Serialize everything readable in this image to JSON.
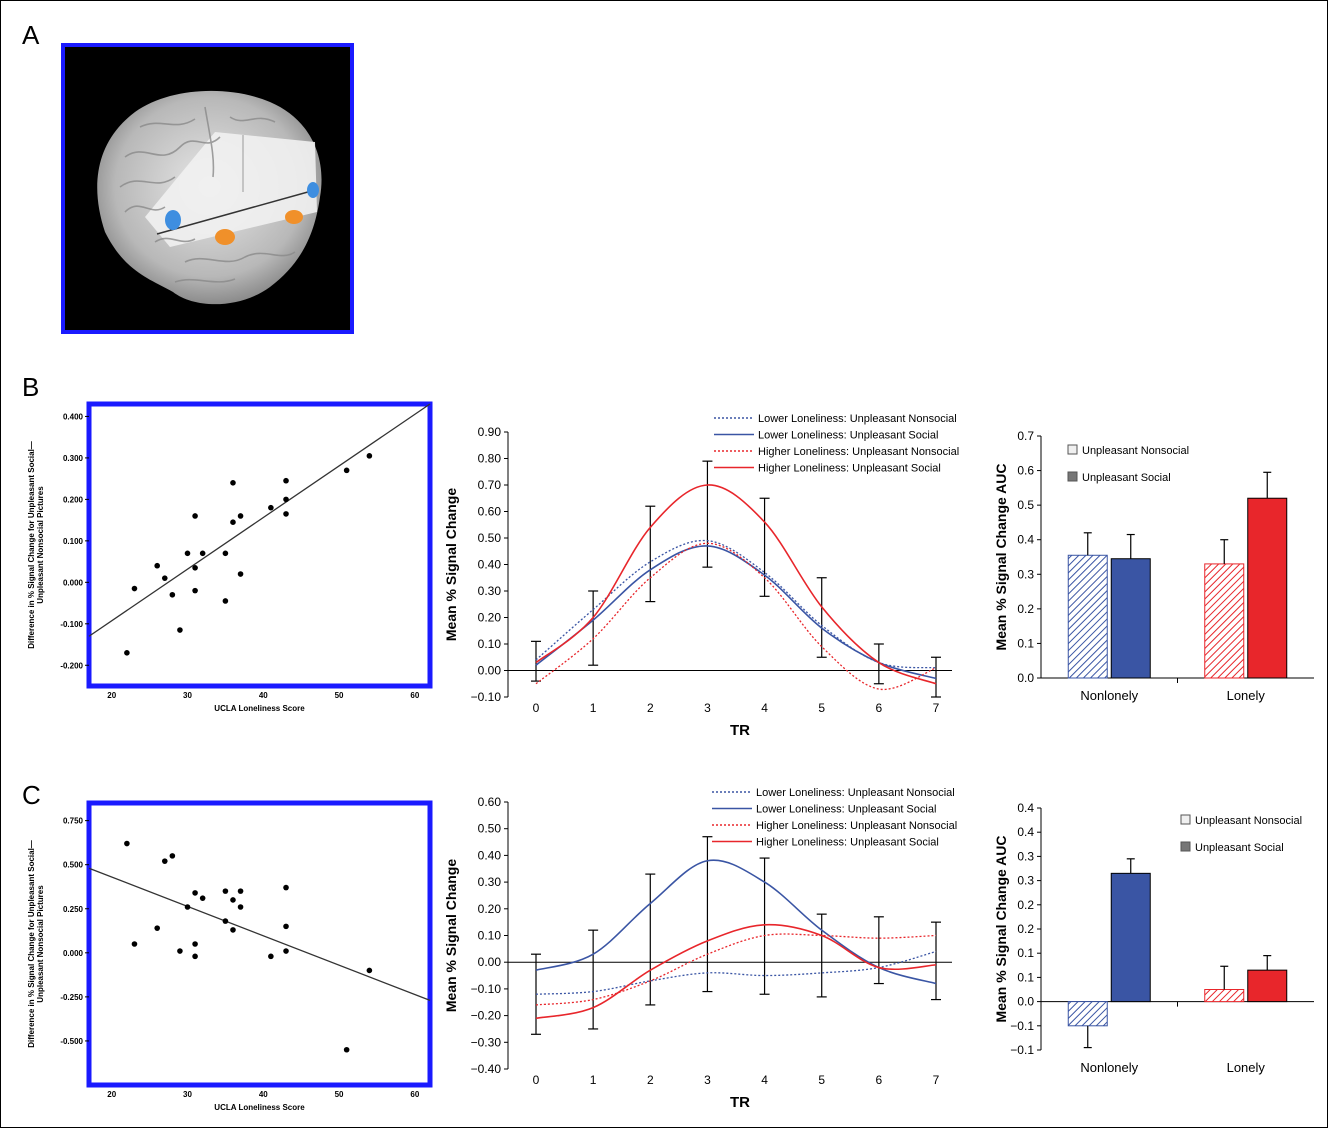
{
  "panels": {
    "a": "A",
    "b": "B",
    "c": "C"
  },
  "colors": {
    "blue_box": "#1a1aff",
    "series_blue": "#3a55a4",
    "series_red": "#e8262b"
  },
  "chart_data": [
    {
      "id": "B-scatter",
      "type": "scatter",
      "ylabel_line1": "Difference in % Signal Change for Unpleasant Social—",
      "ylabel_line2": "Unpleasant Nonsocial Pictures",
      "xlabel": "UCLA Loneliness Score",
      "xlim": [
        17,
        62
      ],
      "ylim": [
        -0.25,
        0.43
      ],
      "xticks": [
        20,
        30,
        40,
        50,
        60
      ],
      "yticks": [
        -0.2,
        -0.1,
        0.0,
        0.1,
        0.2,
        0.3,
        0.4
      ],
      "ytick_labels": [
        "-0.200",
        "-0.100",
        "0.000",
        "0.100",
        "0.200",
        "0.300",
        "0.400"
      ],
      "points": [
        [
          22,
          -0.17
        ],
        [
          23,
          -0.015
        ],
        [
          26,
          0.04
        ],
        [
          27,
          0.01
        ],
        [
          28,
          -0.03
        ],
        [
          29,
          -0.115
        ],
        [
          30,
          0.07
        ],
        [
          31,
          0.16
        ],
        [
          31,
          0.035
        ],
        [
          31,
          -0.02
        ],
        [
          32,
          0.07
        ],
        [
          35,
          0.07
        ],
        [
          35,
          -0.045
        ],
        [
          36,
          0.24
        ],
        [
          36,
          0.145
        ],
        [
          37,
          0.16
        ],
        [
          37,
          0.02
        ],
        [
          41,
          0.18
        ],
        [
          43,
          0.245
        ],
        [
          43,
          0.2
        ],
        [
          43,
          0.165
        ],
        [
          51,
          0.27
        ],
        [
          54,
          0.305
        ]
      ],
      "fit": [
        [
          17,
          -0.13
        ],
        [
          62,
          0.43
        ]
      ]
    },
    {
      "id": "B-timecourse",
      "type": "line",
      "xlabel": "TR",
      "ylabel": "Mean % Signal Change",
      "x": [
        0,
        1,
        2,
        3,
        4,
        5,
        6,
        7
      ],
      "ylim": [
        -0.1,
        0.9
      ],
      "yticks": [
        -0.1,
        0.0,
        0.1,
        0.2,
        0.3,
        0.4,
        0.5,
        0.6,
        0.7,
        0.8,
        0.9
      ],
      "ytick_labels": [
        "−0.10",
        "0.00",
        "0.10",
        "0.20",
        "0.30",
        "0.40",
        "0.50",
        "0.60",
        "0.70",
        "0.80",
        "0.90"
      ],
      "series": [
        {
          "name": "Lower Loneliness: Unpleasant Nonsocial",
          "color": "#3a55a4",
          "dash": true,
          "values": [
            0.04,
            0.23,
            0.41,
            0.49,
            0.37,
            0.17,
            0.03,
            0.01
          ]
        },
        {
          "name": "Lower Loneliness: Unpleasant Social",
          "color": "#3a55a4",
          "dash": false,
          "values": [
            0.02,
            0.19,
            0.38,
            0.47,
            0.36,
            0.16,
            0.03,
            -0.03
          ]
        },
        {
          "name": "Higher Loneliness: Unpleasant Nonsocial",
          "color": "#e8262b",
          "dash": true,
          "values": [
            -0.05,
            0.12,
            0.35,
            0.48,
            0.35,
            0.09,
            -0.07,
            0.01
          ]
        },
        {
          "name": "Higher Loneliness: Unpleasant Social",
          "color": "#e8262b",
          "dash": false,
          "values": [
            0.03,
            0.2,
            0.54,
            0.7,
            0.56,
            0.24,
            0.03,
            -0.05
          ]
        }
      ],
      "errorbars": [
        {
          "x": 0,
          "lo": -0.04,
          "hi": 0.11
        },
        {
          "x": 1,
          "lo": 0.02,
          "hi": 0.3
        },
        {
          "x": 2,
          "lo": 0.26,
          "hi": 0.62
        },
        {
          "x": 3,
          "lo": 0.39,
          "hi": 0.79
        },
        {
          "x": 4,
          "lo": 0.28,
          "hi": 0.65
        },
        {
          "x": 5,
          "lo": 0.05,
          "hi": 0.35
        },
        {
          "x": 6,
          "lo": -0.05,
          "hi": 0.1
        },
        {
          "x": 7,
          "lo": -0.1,
          "hi": 0.05
        }
      ]
    },
    {
      "id": "B-bars",
      "type": "bar",
      "ylabel": "Mean % Signal Change AUC",
      "categories": [
        "Nonlonely",
        "Lonely"
      ],
      "ylim": [
        0,
        0.7
      ],
      "yticks": [
        0,
        0.1,
        0.2,
        0.3,
        0.4,
        0.5,
        0.6,
        0.7
      ],
      "ytick_labels": [
        "0.0",
        "0.1",
        "0.2",
        "0.3",
        "0.4",
        "0.5",
        "0.6",
        "0.7"
      ],
      "legend": [
        "Unpleasant Nonsocial",
        "Unpleasant Social"
      ],
      "bars": [
        {
          "category": "Nonlonely",
          "series": "Unpleasant Nonsocial",
          "value": 0.355,
          "err": 0.065,
          "hatched": true,
          "color": "#3a55a4"
        },
        {
          "category": "Nonlonely",
          "series": "Unpleasant Social",
          "value": 0.345,
          "err": 0.07,
          "hatched": false,
          "color": "#3a55a4"
        },
        {
          "category": "Lonely",
          "series": "Unpleasant Nonsocial",
          "value": 0.33,
          "err": 0.07,
          "hatched": true,
          "color": "#e8262b"
        },
        {
          "category": "Lonely",
          "series": "Unpleasant Social",
          "value": 0.52,
          "err": 0.075,
          "hatched": false,
          "color": "#e8262b"
        }
      ]
    },
    {
      "id": "C-scatter",
      "type": "scatter",
      "ylabel_line1": "Difference in % Signal Change for Unpleasant Social—",
      "ylabel_line2": "Unpleasant Nonsocial Pictures",
      "xlabel": "UCLA Loneliness Score",
      "xlim": [
        17,
        62
      ],
      "ylim": [
        -0.75,
        0.85
      ],
      "xticks": [
        20,
        30,
        40,
        50,
        60
      ],
      "yticks": [
        -0.5,
        -0.25,
        0.0,
        0.25,
        0.5,
        0.75
      ],
      "ytick_labels": [
        "-0.500",
        "-0.250",
        "0.000",
        "0.250",
        "0.500",
        "0.750"
      ],
      "points": [
        [
          22,
          0.62
        ],
        [
          23,
          0.05
        ],
        [
          26,
          0.14
        ],
        [
          27,
          0.52
        ],
        [
          28,
          0.55
        ],
        [
          29,
          0.01
        ],
        [
          30,
          0.26
        ],
        [
          31,
          0.34
        ],
        [
          31,
          0.05
        ],
        [
          31,
          -0.02
        ],
        [
          32,
          0.31
        ],
        [
          35,
          0.35
        ],
        [
          35,
          0.18
        ],
        [
          36,
          0.3
        ],
        [
          36,
          0.13
        ],
        [
          37,
          0.35
        ],
        [
          37,
          0.26
        ],
        [
          41,
          -0.02
        ],
        [
          43,
          0.37
        ],
        [
          43,
          0.15
        ],
        [
          43,
          0.01
        ],
        [
          51,
          -0.55
        ],
        [
          54,
          -0.1
        ]
      ],
      "fit": [
        [
          17,
          0.48
        ],
        [
          62,
          -0.27
        ]
      ]
    },
    {
      "id": "C-timecourse",
      "type": "line",
      "xlabel": "TR",
      "ylabel": "Mean % Signal Change",
      "x": [
        0,
        1,
        2,
        3,
        4,
        5,
        6,
        7
      ],
      "ylim": [
        -0.4,
        0.6
      ],
      "yticks": [
        -0.4,
        -0.3,
        -0.2,
        -0.1,
        0.0,
        0.1,
        0.2,
        0.3,
        0.4,
        0.5,
        0.6
      ],
      "ytick_labels": [
        "−0.40",
        "−0.30",
        "−0.20",
        "−0.10",
        "0.00",
        "0.10",
        "0.20",
        "0.30",
        "0.40",
        "0.50",
        "0.60"
      ],
      "series": [
        {
          "name": "Lower Loneliness: Unpleasant Nonsocial",
          "color": "#3a55a4",
          "dash": true,
          "values": [
            -0.12,
            -0.11,
            -0.07,
            -0.04,
            -0.05,
            -0.04,
            -0.02,
            0.04
          ]
        },
        {
          "name": "Lower Loneliness: Unpleasant Social",
          "color": "#3a55a4",
          "dash": false,
          "values": [
            -0.03,
            0.03,
            0.22,
            0.38,
            0.3,
            0.12,
            -0.02,
            -0.08
          ]
        },
        {
          "name": "Higher Loneliness: Unpleasant Nonsocial",
          "color": "#e8262b",
          "dash": true,
          "values": [
            -0.16,
            -0.14,
            -0.07,
            0.03,
            0.1,
            0.1,
            0.09,
            0.1
          ]
        },
        {
          "name": "Higher Loneliness: Unpleasant Social",
          "color": "#e8262b",
          "dash": false,
          "values": [
            -0.21,
            -0.17,
            -0.03,
            0.08,
            0.14,
            0.1,
            -0.02,
            -0.01
          ]
        }
      ],
      "errorbars": [
        {
          "x": 0,
          "lo": -0.27,
          "hi": 0.03
        },
        {
          "x": 1,
          "lo": -0.25,
          "hi": 0.12
        },
        {
          "x": 2,
          "lo": -0.16,
          "hi": 0.33
        },
        {
          "x": 3,
          "lo": -0.11,
          "hi": 0.47
        },
        {
          "x": 4,
          "lo": -0.12,
          "hi": 0.39
        },
        {
          "x": 5,
          "lo": -0.13,
          "hi": 0.18
        },
        {
          "x": 6,
          "lo": -0.08,
          "hi": 0.17
        },
        {
          "x": 7,
          "lo": -0.14,
          "hi": 0.15
        }
      ]
    },
    {
      "id": "C-bars",
      "type": "bar",
      "ylabel": "Mean % Signal Change AUC",
      "categories": [
        "Nonlonely",
        "Lonely"
      ],
      "ylim": [
        -0.1,
        0.4
      ],
      "yticks": [
        -0.1,
        -0.05,
        0,
        0.05,
        0.1,
        0.15,
        0.2,
        0.25,
        0.3,
        0.35,
        0.4
      ],
      "ytick_labels": [
        "−0.1",
        "−0.1",
        "0.0",
        "0.1",
        "0.1",
        "0.2",
        "0.2",
        "0.3",
        "0.3",
        "0.4",
        "0.4"
      ],
      "legend": [
        "Unpleasant Nonsocial",
        "Unpleasant Social"
      ],
      "bars": [
        {
          "category": "Nonlonely",
          "series": "Unpleasant Nonsocial",
          "value": -0.05,
          "err": 0.045,
          "hatched": true,
          "color": "#3a55a4"
        },
        {
          "category": "Nonlonely",
          "series": "Unpleasant Social",
          "value": 0.265,
          "err": 0.03,
          "hatched": false,
          "color": "#3a55a4"
        },
        {
          "category": "Lonely",
          "series": "Unpleasant Nonsocial",
          "value": 0.025,
          "err": 0.048,
          "hatched": true,
          "color": "#e8262b"
        },
        {
          "category": "Lonely",
          "series": "Unpleasant Social",
          "value": 0.065,
          "err": 0.03,
          "hatched": false,
          "color": "#e8262b"
        }
      ]
    }
  ]
}
